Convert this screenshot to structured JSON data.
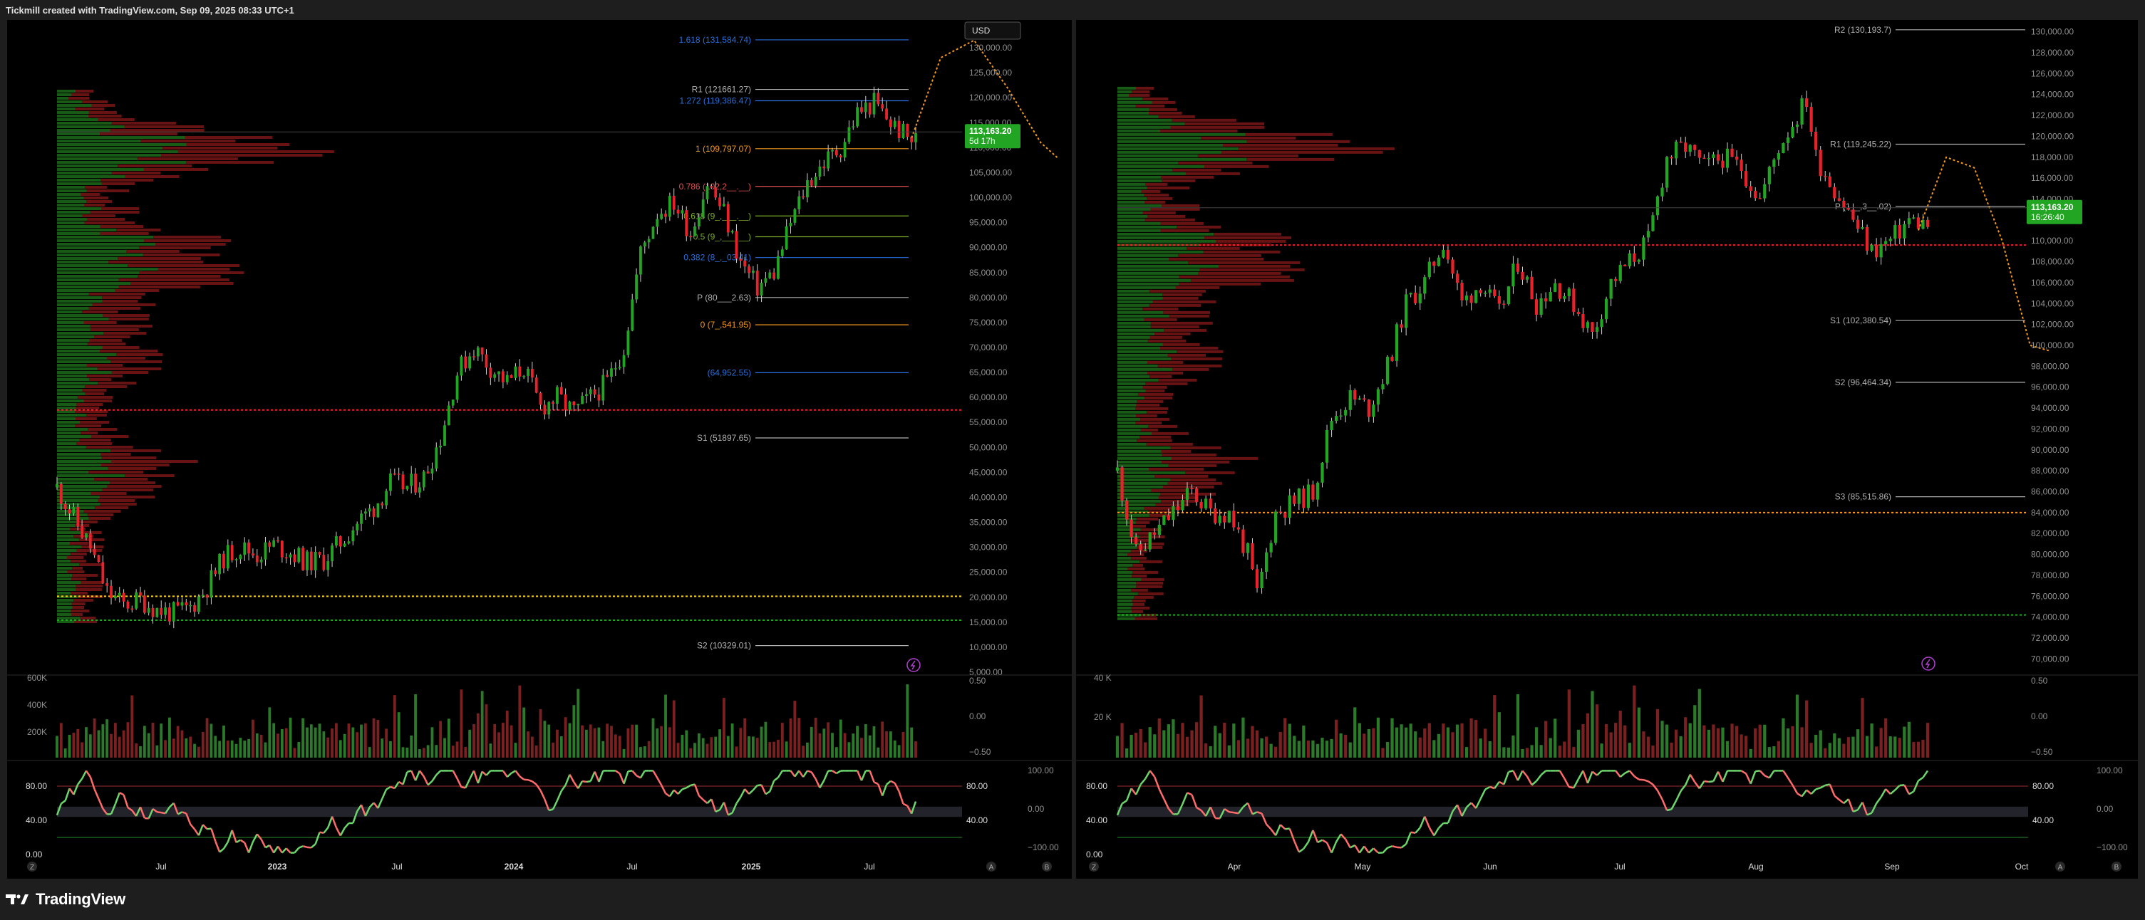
{
  "header": {
    "text": "Tickmill created with TradingView.com, Sep 09, 2025 08:33 UTC+1"
  },
  "footer": {
    "brand": "TradingView"
  },
  "colors": {
    "background": "#000000",
    "frame": "#1e1e1e",
    "up": "#22a522",
    "down": "#e8222a",
    "axis_text": "#8f8f8f",
    "level_line": "#b0b0b0",
    "fib_blue": "#2a6fdb",
    "fib_orange": "#f39a1d",
    "fib_red": "#e05050",
    "fib_green": "#7dad2b",
    "projection": "#f39a1d",
    "price_badge": "#22a522",
    "rsi_green": "#6cd66c",
    "rsi_red": "#ff6b6b"
  },
  "chart_data": [
    {
      "panel": "left",
      "type": "candlestick",
      "currency": "USD",
      "price_scale": {
        "min": 5000,
        "max": 135000,
        "step": 5000,
        "ticks": [
          "130,000.00",
          "125,000.00",
          "120,000.00",
          "115,000.00",
          "110,000.00",
          "105,000.00",
          "100,000.00",
          "95,000.00",
          "90,000.00",
          "85,000.00",
          "80,000.00",
          "75,000.00",
          "70,000.00",
          "65,000.00",
          "60,000.00",
          "55,000.00",
          "50,000.00",
          "45,000.00",
          "40,000.00",
          "35,000.00",
          "30,000.00",
          "25,000.00",
          "20,000.00",
          "15,000.00",
          "10,000.00",
          "5,000.00"
        ]
      },
      "time_axis": [
        "Z",
        "Jul",
        "2023",
        "Jul",
        "2024",
        "Jul",
        "2025",
        "Jul",
        "A",
        "B"
      ],
      "price_path": [
        [
          0,
          42000
        ],
        [
          4,
          36000
        ],
        [
          8,
          30000
        ],
        [
          12,
          21000
        ],
        [
          16,
          18500
        ],
        [
          20,
          19500
        ],
        [
          24,
          17500
        ],
        [
          28,
          16800
        ],
        [
          32,
          18000
        ],
        [
          36,
          22000
        ],
        [
          40,
          28000
        ],
        [
          44,
          30000
        ],
        [
          48,
          28500
        ],
        [
          52,
          30500
        ],
        [
          56,
          29000
        ],
        [
          60,
          27000
        ],
        [
          64,
          27500
        ],
        [
          68,
          31000
        ],
        [
          72,
          35000
        ],
        [
          76,
          38000
        ],
        [
          80,
          43000
        ],
        [
          84,
          42000
        ],
        [
          88,
          44000
        ],
        [
          92,
          52000
        ],
        [
          96,
          65000
        ],
        [
          100,
          70000
        ],
        [
          104,
          66000
        ],
        [
          108,
          63000
        ],
        [
          112,
          66000
        ],
        [
          116,
          58000
        ],
        [
          120,
          60000
        ],
        [
          124,
          57000
        ],
        [
          128,
          60000
        ],
        [
          132,
          63000
        ],
        [
          136,
          70000
        ],
        [
          140,
          89000
        ],
        [
          144,
          97000
        ],
        [
          148,
          99000
        ],
        [
          152,
          93000
        ],
        [
          156,
          103000
        ],
        [
          160,
          97000
        ],
        [
          164,
          87000
        ],
        [
          168,
          82000
        ],
        [
          172,
          85000
        ],
        [
          176,
          95000
        ],
        [
          180,
          103000
        ],
        [
          184,
          107000
        ],
        [
          188,
          110000
        ],
        [
          192,
          117000
        ],
        [
          196,
          119000
        ],
        [
          200,
          115000
        ],
        [
          204,
          112000
        ],
        [
          206,
          111500
        ]
      ],
      "last_price": "113,163.20",
      "countdown": "5d 17h",
      "levels": [
        {
          "label": "1.618 (131,584.74)",
          "value": 131584.74,
          "color": "#2a6fdb"
        },
        {
          "label": "R1 (121661.27)",
          "value": 121661.27,
          "color": "#b0b0b0"
        },
        {
          "label": "1.272 (119,386.47)",
          "value": 119386.47,
          "color": "#2a6fdb"
        },
        {
          "label": "1 (109,797.07)",
          "value": 109797.07,
          "color": "#f39a1d"
        },
        {
          "label": "0.786 (102,2__.__)",
          "value": 102250,
          "color": "#e05050"
        },
        {
          "label": "0.618 (9_,___.__)",
          "value": 96330,
          "color": "#7dad2b"
        },
        {
          "label": "0.5 (9_,___.__)",
          "value": 92170,
          "color": "#7dad2b"
        },
        {
          "label": "0.382 (8_,_03.41)",
          "value": 88003.41,
          "color": "#2a6fdb"
        },
        {
          "label": "P (80___2.63)",
          "value": 80002.63,
          "color": "#b0b0b0"
        },
        {
          "label": "0 (7_,541.95)",
          "value": 74541.95,
          "color": "#f39a1d"
        },
        {
          "label": "(64,952.55)",
          "value": 64952.55,
          "color": "#2a6fdb"
        },
        {
          "label": "S1 (51897.65)",
          "value": 51897.65,
          "color": "#b0b0b0"
        },
        {
          "label": "S2 (10329.01)",
          "value": 10329.01,
          "color": "#b0b0b0"
        }
      ],
      "poc_lines": [
        {
          "value": 57500,
          "color": "#e8222a"
        },
        {
          "value": 20200,
          "color": "#f3d21d"
        },
        {
          "value": 15400,
          "color": "#22a522"
        }
      ],
      "projection": [
        [
          205,
          112000
        ],
        [
          212,
          128000
        ],
        [
          220,
          131500
        ],
        [
          228,
          122000
        ],
        [
          236,
          111000
        ],
        [
          240,
          108000
        ]
      ],
      "volume": {
        "ticks": [
          "600K",
          "400K",
          "200K"
        ],
        "right_ticks": [
          "0.50",
          "0.00",
          "−0.50"
        ]
      },
      "rsi": {
        "ticks": [
          "80.00",
          "40.00",
          "0.00"
        ],
        "right_ticks": [
          "100.00",
          "0.00",
          "−100.00"
        ],
        "mid_ticks": [
          "80.00",
          "40.00"
        ]
      }
    },
    {
      "panel": "right",
      "type": "candlestick",
      "price_scale": {
        "min": 69000,
        "max": 131000,
        "step": 2000,
        "ticks": [
          "130,000.00",
          "128,000.00",
          "126,000.00",
          "124,000.00",
          "122,000.00",
          "120,000.00",
          "118,000.00",
          "116,000.00",
          "114,000.00",
          "112,000.00",
          "110,000.00",
          "108,000.00",
          "106,000.00",
          "104,000.00",
          "102,000.00",
          "100,000.00",
          "98,000.00",
          "96,000.00",
          "94,000.00",
          "92,000.00",
          "90,000.00",
          "88,000.00",
          "86,000.00",
          "84,000.00",
          "82,000.00",
          "80,000.00",
          "78,000.00",
          "76,000.00",
          "74,000.00",
          "72,000.00",
          "70,000.00"
        ]
      },
      "time_axis": [
        "Z",
        "Apr",
        "May",
        "Jun",
        "Jul",
        "Aug",
        "Sep",
        "Oct",
        "A",
        "B"
      ],
      "price_path": [
        [
          0,
          88000
        ],
        [
          4,
          80000
        ],
        [
          8,
          82000
        ],
        [
          12,
          84000
        ],
        [
          16,
          86000
        ],
        [
          20,
          84000
        ],
        [
          24,
          84000
        ],
        [
          28,
          80000
        ],
        [
          30,
          76000
        ],
        [
          34,
          84000
        ],
        [
          38,
          85000
        ],
        [
          42,
          86000
        ],
        [
          46,
          93000
        ],
        [
          50,
          95000
        ],
        [
          54,
          94000
        ],
        [
          58,
          98000
        ],
        [
          62,
          104000
        ],
        [
          66,
          106000
        ],
        [
          70,
          110000
        ],
        [
          74,
          104000
        ],
        [
          78,
          106000
        ],
        [
          82,
          103000
        ],
        [
          86,
          108000
        ],
        [
          90,
          104000
        ],
        [
          94,
          106000
        ],
        [
          98,
          104000
        ],
        [
          102,
          101000
        ],
        [
          106,
          106000
        ],
        [
          110,
          108000
        ],
        [
          114,
          110000
        ],
        [
          118,
          118000
        ],
        [
          122,
          119000
        ],
        [
          126,
          117000
        ],
        [
          130,
          118000
        ],
        [
          134,
          117000
        ],
        [
          138,
          114000
        ],
        [
          142,
          119000
        ],
        [
          146,
          122000
        ],
        [
          148,
          123500
        ],
        [
          150,
          118000
        ],
        [
          154,
          115000
        ],
        [
          158,
          112000
        ],
        [
          162,
          109000
        ],
        [
          166,
          110000
        ],
        [
          170,
          112000
        ],
        [
          174,
          111500
        ]
      ],
      "last_price": "113,163.20",
      "countdown": "16:26:40",
      "levels": [
        {
          "label": "R2 (130,193.7)",
          "value": 130193.7,
          "color": "#b0b0b0"
        },
        {
          "label": "R1 (119,245.22)",
          "value": 119245.22,
          "color": "#b0b0b0"
        },
        {
          "label": "P (1__,3__.02)",
          "value": 113300,
          "color": "#b0b0b0"
        },
        {
          "label": "S1 (102,380.54)",
          "value": 102380.54,
          "color": "#b0b0b0"
        },
        {
          "label": "S2 (96,464.34)",
          "value": 96464.34,
          "color": "#b0b0b0"
        },
        {
          "label": "S3 (85,515.86)",
          "value": 85515.86,
          "color": "#b0b0b0"
        }
      ],
      "poc_lines": [
        {
          "value": 109600,
          "color": "#e8222a"
        },
        {
          "value": 84000,
          "color": "#f39a1d"
        },
        {
          "value": 74200,
          "color": "#22a522"
        }
      ],
      "projection": [
        [
          172,
          111000
        ],
        [
          178,
          118000
        ],
        [
          184,
          117000
        ],
        [
          190,
          110000
        ],
        [
          196,
          100000
        ],
        [
          200,
          99500
        ]
      ],
      "volume": {
        "ticks": [
          "40 K",
          "20 K"
        ],
        "right_ticks": [
          "0.50",
          "0.00",
          "−0.50"
        ]
      },
      "rsi": {
        "ticks": [
          "80.00",
          "40.00",
          "0.00"
        ],
        "right_ticks": [
          "100.00",
          "0.00",
          "−100.00"
        ],
        "mid_ticks": [
          "80.00",
          "40.00"
        ]
      }
    }
  ]
}
